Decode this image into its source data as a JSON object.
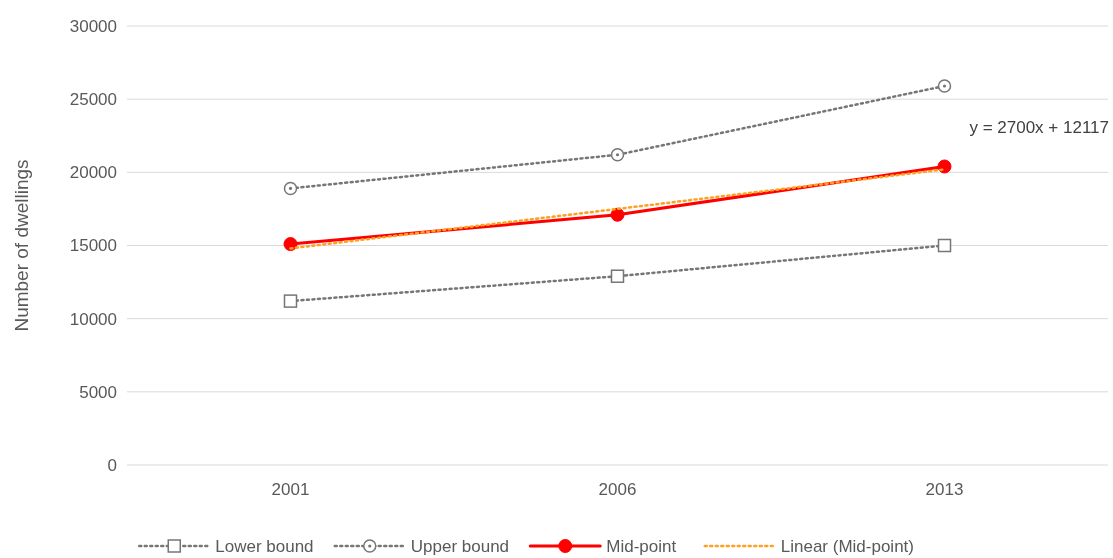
{
  "chart_data": {
    "type": "line",
    "ylabel": "Number of dwellings",
    "categories": [
      "2001",
      "2006",
      "2013"
    ],
    "ylim": [
      0,
      30000
    ],
    "yticks": [
      0,
      5000,
      10000,
      15000,
      20000,
      25000,
      30000
    ],
    "grid": "y",
    "legend": "bottom",
    "series": [
      {
        "name": "Lower bound",
        "color": "#767676",
        "values": [
          11200,
          12900,
          15000
        ],
        "marker": "square",
        "line_style": "dotted"
      },
      {
        "name": "Upper bound",
        "color": "#767676",
        "values": [
          18900,
          21200,
          25900
        ],
        "marker": "circle",
        "line_style": "dotted"
      },
      {
        "name": "Mid-point",
        "color": "#ff0000",
        "values": [
          15100,
          17100,
          20400
        ],
        "marker": "circle",
        "line_style": "solid"
      },
      {
        "name": "Linear (Mid-point)",
        "color": "#ffa020",
        "values": [
          14800,
          17500,
          20200
        ],
        "marker": "none",
        "line_style": "dotted"
      }
    ],
    "annotations": [
      "y = 2700x + 12117"
    ]
  }
}
